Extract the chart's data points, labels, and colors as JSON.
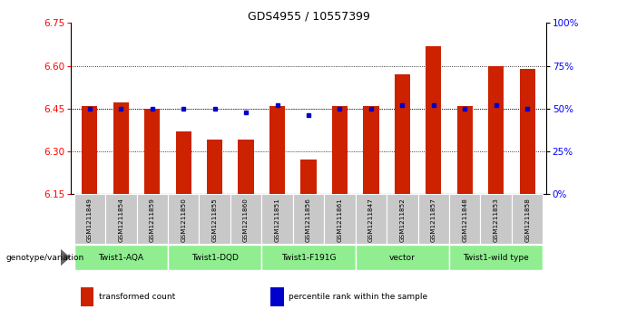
{
  "title": "GDS4955 / 10557399",
  "samples": [
    "GSM1211849",
    "GSM1211854",
    "GSM1211859",
    "GSM1211850",
    "GSM1211855",
    "GSM1211860",
    "GSM1211851",
    "GSM1211856",
    "GSM1211861",
    "GSM1211847",
    "GSM1211852",
    "GSM1211857",
    "GSM1211848",
    "GSM1211853",
    "GSM1211858"
  ],
  "bar_values": [
    6.46,
    6.47,
    6.45,
    6.37,
    6.34,
    6.34,
    6.46,
    6.27,
    6.46,
    6.46,
    6.57,
    6.67,
    6.46,
    6.6,
    6.59
  ],
  "dot_values": [
    50,
    50,
    50,
    50,
    50,
    48,
    52,
    46,
    50,
    50,
    52,
    52,
    50,
    52,
    50
  ],
  "groups": [
    {
      "label": "Twist1-AQA",
      "start": 0,
      "end": 3
    },
    {
      "label": "Twist1-DQD",
      "start": 3,
      "end": 6
    },
    {
      "label": "Twist1-F191G",
      "start": 6,
      "end": 9
    },
    {
      "label": "vector",
      "start": 9,
      "end": 12
    },
    {
      "label": "Twist1-wild type",
      "start": 12,
      "end": 15
    }
  ],
  "ylim_left": [
    6.15,
    6.75
  ],
  "ylim_right": [
    0,
    100
  ],
  "yticks_left": [
    6.15,
    6.3,
    6.45,
    6.6,
    6.75
  ],
  "yticks_right": [
    0,
    25,
    50,
    75,
    100
  ],
  "bar_color": "#cc2200",
  "dot_color": "#0000cc",
  "bar_bottom": 6.15,
  "grid_values": [
    6.3,
    6.45,
    6.6
  ],
  "group_color": "#90ee90",
  "gray_color": "#c8c8c8",
  "legend_items": [
    {
      "label": "transformed count",
      "color": "#cc2200"
    },
    {
      "label": "percentile rank within the sample",
      "color": "#0000cc"
    }
  ]
}
